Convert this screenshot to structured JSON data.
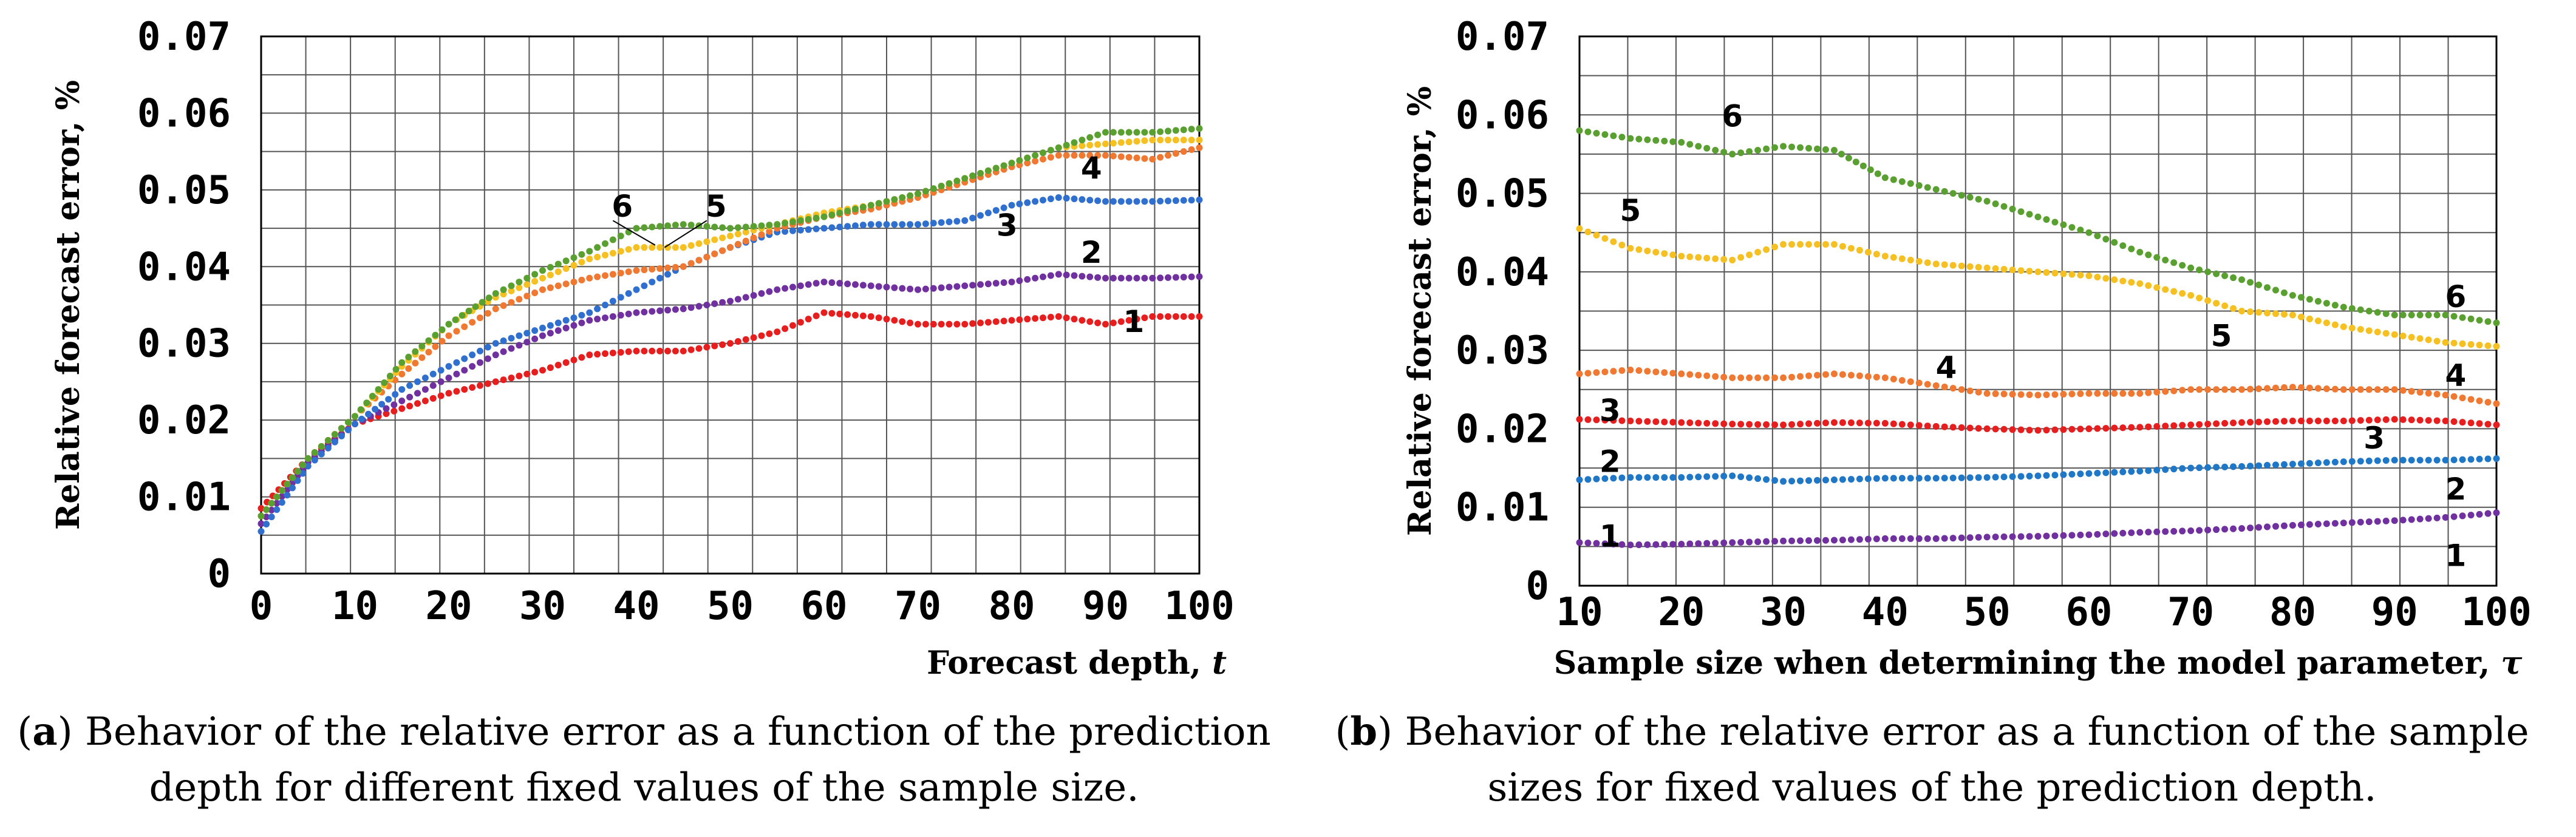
{
  "chart_data": [
    {
      "id": "a",
      "type": "line",
      "xlabel": "Forecast depth, ",
      "xlabel_var": "t",
      "ylabel": "Relative forecast error, %",
      "xlim": [
        0,
        100
      ],
      "ylim": [
        0,
        0.07
      ],
      "xticks": [
        "0",
        "10",
        "20",
        "30",
        "40",
        "50",
        "60",
        "70",
        "80",
        "90",
        "100"
      ],
      "yticks": [
        "0",
        "0.01",
        "0.02",
        "0.03",
        "0.04",
        "0.05",
        "0.06",
        "0.07"
      ],
      "series": [
        {
          "name": "1",
          "color": "#e81e1e",
          "x": [
            0,
            5,
            10,
            15,
            20,
            25,
            30,
            35,
            40,
            45,
            50,
            55,
            60,
            65,
            70,
            75,
            80,
            85,
            90,
            95,
            100
          ],
          "y": [
            0.0085,
            0.015,
            0.0195,
            0.0215,
            0.0235,
            0.025,
            0.0265,
            0.0285,
            0.029,
            0.029,
            0.03,
            0.0315,
            0.034,
            0.0335,
            0.0325,
            0.0325,
            0.033,
            0.0335,
            0.0325,
            0.0335,
            0.0335
          ]
        },
        {
          "name": "2",
          "color": "#7030a0",
          "x": [
            0,
            5,
            10,
            15,
            20,
            25,
            30,
            35,
            40,
            45,
            50,
            55,
            60,
            65,
            70,
            75,
            80,
            85,
            90,
            95,
            100
          ],
          "y": [
            0.0065,
            0.0145,
            0.0195,
            0.0225,
            0.0255,
            0.0285,
            0.031,
            0.033,
            0.034,
            0.0345,
            0.0355,
            0.037,
            0.038,
            0.0375,
            0.037,
            0.0375,
            0.038,
            0.039,
            0.0385,
            0.0385,
            0.0387
          ]
        },
        {
          "name": "3",
          "color": "#2f6fd0",
          "x": [
            0,
            5,
            10,
            15,
            20,
            25,
            30,
            35,
            40,
            45,
            50,
            55,
            60,
            65,
            70,
            75,
            80,
            85,
            90,
            95,
            100
          ],
          "y": [
            0.0055,
            0.014,
            0.0195,
            0.024,
            0.027,
            0.03,
            0.032,
            0.034,
            0.037,
            0.04,
            0.0425,
            0.0445,
            0.045,
            0.0455,
            0.0455,
            0.046,
            0.048,
            0.049,
            0.0485,
            0.0485,
            0.0487
          ]
        },
        {
          "name": "4",
          "color": "#f07830",
          "x": [
            0,
            5,
            10,
            15,
            20,
            25,
            30,
            35,
            40,
            45,
            50,
            55,
            60,
            65,
            70,
            75,
            80,
            85,
            90,
            95,
            100
          ],
          "y": [
            0.0075,
            0.015,
            0.0205,
            0.026,
            0.031,
            0.0345,
            0.037,
            0.0385,
            0.0395,
            0.04,
            0.0425,
            0.045,
            0.0465,
            0.0475,
            0.049,
            0.051,
            0.053,
            0.0545,
            0.0545,
            0.054,
            0.0555
          ]
        },
        {
          "name": "5",
          "color": "#f5c020",
          "x": [
            0,
            5,
            10,
            15,
            20,
            25,
            30,
            35,
            40,
            45,
            50,
            55,
            60,
            65,
            70,
            75,
            80,
            85,
            90,
            95,
            100
          ],
          "y": [
            0.0075,
            0.015,
            0.0205,
            0.027,
            0.0325,
            0.036,
            0.0385,
            0.041,
            0.0425,
            0.0425,
            0.044,
            0.0455,
            0.047,
            0.048,
            0.0495,
            0.0515,
            0.0535,
            0.0555,
            0.056,
            0.0565,
            0.0565
          ]
        },
        {
          "name": "6",
          "color": "#5aa030",
          "x": [
            0,
            5,
            10,
            15,
            20,
            25,
            30,
            35,
            40,
            45,
            50,
            55,
            60,
            65,
            70,
            75,
            80,
            85,
            90,
            95,
            100
          ],
          "y": [
            0.0075,
            0.015,
            0.0205,
            0.0275,
            0.0325,
            0.0365,
            0.0395,
            0.042,
            0.045,
            0.0455,
            0.045,
            0.0455,
            0.0465,
            0.048,
            0.0495,
            0.0515,
            0.0535,
            0.0555,
            0.0575,
            0.0575,
            0.058
          ]
        }
      ],
      "labels": [
        {
          "text": "1",
          "x": 93,
          "y": 0.0315
        },
        {
          "text": "2",
          "x": 88.5,
          "y": 0.0405
        },
        {
          "text": "3",
          "x": 79.5,
          "y": 0.044
        },
        {
          "text": "4",
          "x": 88.5,
          "y": 0.0515
        },
        {
          "text": "5",
          "x": 48.5,
          "y": 0.0465
        },
        {
          "text": "6",
          "x": 38.5,
          "y": 0.0465
        }
      ]
    },
    {
      "id": "b",
      "type": "line",
      "xlabel": "Sample size when determining the model parameter, ",
      "xlabel_var": "τ",
      "ylabel": "Relative forecast error, %",
      "xlim": [
        10,
        100
      ],
      "ylim": [
        0,
        0.07
      ],
      "xticks": [
        "10",
        "20",
        "30",
        "40",
        "50",
        "60",
        "70",
        "80",
        "90",
        "100"
      ],
      "yticks": [
        "0",
        "0.01",
        "0.02",
        "0.03",
        "0.04",
        "0.05",
        "0.06",
        "0.07"
      ],
      "series": [
        {
          "name": "1",
          "color": "#7030a0",
          "x": [
            10,
            15,
            20,
            25,
            30,
            35,
            40,
            45,
            50,
            55,
            60,
            65,
            70,
            75,
            80,
            85,
            90,
            95,
            100
          ],
          "y": [
            0.0055,
            0.0052,
            0.0053,
            0.0055,
            0.0057,
            0.0058,
            0.006,
            0.006,
            0.0062,
            0.0063,
            0.0065,
            0.0068,
            0.007,
            0.0073,
            0.0077,
            0.008,
            0.0083,
            0.0087,
            0.0093
          ]
        },
        {
          "name": "2",
          "color": "#1f77c8",
          "x": [
            10,
            15,
            20,
            25,
            30,
            35,
            40,
            45,
            50,
            55,
            60,
            65,
            70,
            75,
            80,
            85,
            90,
            95,
            100
          ],
          "y": [
            0.0135,
            0.0138,
            0.0138,
            0.014,
            0.0133,
            0.0135,
            0.0137,
            0.0137,
            0.0138,
            0.014,
            0.0143,
            0.0146,
            0.015,
            0.0152,
            0.0155,
            0.0158,
            0.016,
            0.016,
            0.0162
          ]
        },
        {
          "name": "3",
          "color": "#e81e1e",
          "x": [
            10,
            15,
            20,
            25,
            30,
            35,
            40,
            45,
            50,
            55,
            60,
            65,
            70,
            75,
            80,
            85,
            90,
            95,
            100
          ],
          "y": [
            0.0212,
            0.021,
            0.0208,
            0.0206,
            0.0205,
            0.0208,
            0.0207,
            0.0203,
            0.02,
            0.0198,
            0.02,
            0.0202,
            0.0205,
            0.0208,
            0.021,
            0.021,
            0.0212,
            0.021,
            0.0205
          ]
        },
        {
          "name": "4",
          "color": "#f07830",
          "x": [
            10,
            15,
            20,
            25,
            30,
            35,
            40,
            45,
            50,
            55,
            60,
            65,
            70,
            75,
            80,
            85,
            90,
            95,
            100
          ],
          "y": [
            0.027,
            0.0275,
            0.027,
            0.0265,
            0.0265,
            0.027,
            0.0265,
            0.0255,
            0.0245,
            0.0243,
            0.0245,
            0.0245,
            0.025,
            0.025,
            0.0253,
            0.025,
            0.025,
            0.0243,
            0.0232
          ]
        },
        {
          "name": "5",
          "color": "#f5c020",
          "x": [
            10,
            15,
            20,
            25,
            30,
            35,
            40,
            45,
            50,
            55,
            60,
            65,
            70,
            75,
            80,
            85,
            90,
            95,
            100
          ],
          "y": [
            0.0455,
            0.043,
            0.042,
            0.0415,
            0.0435,
            0.0435,
            0.042,
            0.041,
            0.0405,
            0.04,
            0.0395,
            0.0385,
            0.037,
            0.035,
            0.0345,
            0.033,
            0.032,
            0.031,
            0.0305
          ]
        },
        {
          "name": "6",
          "color": "#5aa030",
          "x": [
            10,
            15,
            20,
            25,
            30,
            35,
            40,
            45,
            50,
            55,
            60,
            65,
            70,
            75,
            80,
            85,
            90,
            95,
            100
          ],
          "y": [
            0.058,
            0.057,
            0.0565,
            0.055,
            0.056,
            0.0555,
            0.052,
            0.0505,
            0.049,
            0.047,
            0.045,
            0.0425,
            0.0405,
            0.039,
            0.037,
            0.0355,
            0.0345,
            0.0345,
            0.0335
          ]
        }
      ],
      "labels": [
        {
          "text": "1",
          "x": 13,
          "y": 0.005
        },
        {
          "text": "1",
          "x": 96,
          "y": 0.0025
        },
        {
          "text": "2",
          "x": 13,
          "y": 0.0145
        },
        {
          "text": "2",
          "x": 96,
          "y": 0.011
        },
        {
          "text": "3",
          "x": 13,
          "y": 0.021
        },
        {
          "text": "3",
          "x": 88,
          "y": 0.0175
        },
        {
          "text": "4",
          "x": 46,
          "y": 0.0265
        },
        {
          "text": "4",
          "x": 96,
          "y": 0.0255
        },
        {
          "text": "5",
          "x": 15,
          "y": 0.0465
        },
        {
          "text": "5",
          "x": 73,
          "y": 0.0305
        },
        {
          "text": "6",
          "x": 25,
          "y": 0.0585
        },
        {
          "text": "6",
          "x": 96,
          "y": 0.0355
        }
      ]
    }
  ],
  "captions": {
    "a": {
      "tag": "a",
      "text_line1": ") Behavior of the relative error as a function of the prediction",
      "text_line2": "depth for different fixed values of the sample size."
    },
    "b": {
      "tag": "b",
      "text_line1": ") Behavior of the relative error as a function of the sample",
      "text_line2": "sizes for fixed values of the prediction depth."
    }
  }
}
